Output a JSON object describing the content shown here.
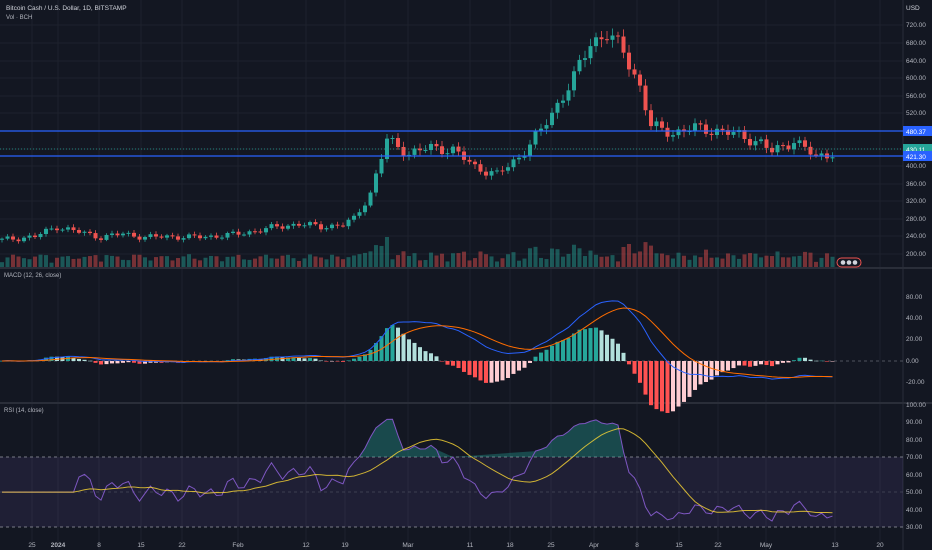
{
  "header": {
    "title": "Bitcoin Cash / U.S. Dollar, 1D, BITSTAMP",
    "volume_label": "Vol · BCH",
    "currency": "USD"
  },
  "price_axis": {
    "ticks": [
      "720.00",
      "680.00",
      "640.00",
      "600.00",
      "560.00",
      "520.00",
      "480.00",
      "440.00",
      "400.00",
      "360.00",
      "320.00",
      "280.00",
      "240.00",
      "200.00"
    ],
    "level_labels": [
      "480.37",
      "430.11",
      "421.30"
    ]
  },
  "macd": {
    "label": "MACD (12, 26, close)",
    "ticks": [
      "80.00",
      "40.00",
      "20.00",
      "0.00",
      "-20.00"
    ]
  },
  "rsi": {
    "label": "RSI (14, close)",
    "ticks": [
      "100.00",
      "90.00",
      "80.00",
      "70.00",
      "60.00",
      "50.00",
      "40.00",
      "30.00"
    ]
  },
  "time_axis": {
    "labels": [
      "25",
      "2024",
      "8",
      "15",
      "22",
      "Feb",
      "12",
      "19",
      "Mar",
      "11",
      "18",
      "25",
      "Apr",
      "8",
      "15",
      "22",
      "May",
      "13",
      "20"
    ]
  },
  "colors": {
    "background": "#131722",
    "up": "#26a69a",
    "down": "#ef5350",
    "hline": "#2962ff",
    "macd_line": "#2962ff",
    "signal_line": "#ff6d00",
    "rsi_line": "#7e57c2",
    "rsi_ma": "#fdd835"
  },
  "chart_data": {
    "type": "candlestick",
    "symbol": "BCHUSD",
    "interval": "1D",
    "horizontal_levels": [
      480.37,
      421.3
    ],
    "last_price": 430.11,
    "close_series": [
      [
        0,
        232
      ],
      [
        6,
        240
      ],
      [
        10,
        262
      ],
      [
        14,
        250
      ],
      [
        18,
        238
      ],
      [
        22,
        246
      ],
      [
        26,
        238
      ],
      [
        30,
        240
      ],
      [
        34,
        238
      ],
      [
        38,
        240
      ],
      [
        42,
        244
      ],
      [
        46,
        252
      ],
      [
        50,
        262
      ],
      [
        54,
        268
      ],
      [
        58,
        262
      ],
      [
        62,
        266
      ],
      [
        64,
        280
      ],
      [
        67,
        338
      ],
      [
        70,
        460
      ],
      [
        74,
        428
      ],
      [
        78,
        442
      ],
      [
        82,
        436
      ],
      [
        86,
        398
      ],
      [
        90,
        380
      ],
      [
        94,
        420
      ],
      [
        98,
        480
      ],
      [
        101,
        540
      ],
      [
        104,
        600
      ],
      [
        107,
        680
      ],
      [
        110,
        700
      ],
      [
        113,
        660
      ],
      [
        116,
        580
      ],
      [
        118,
        490
      ],
      [
        122,
        475
      ],
      [
        126,
        486
      ],
      [
        130,
        480
      ],
      [
        134,
        470
      ],
      [
        138,
        452
      ],
      [
        140,
        432
      ],
      [
        144,
        458
      ],
      [
        148,
        420
      ],
      [
        151,
        430
      ]
    ]
  }
}
